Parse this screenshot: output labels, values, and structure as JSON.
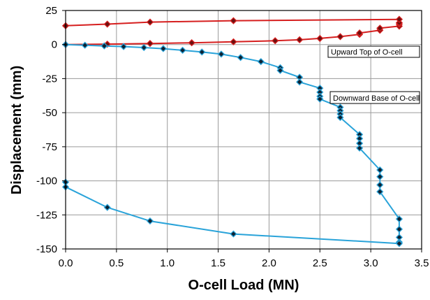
{
  "chart_data": {
    "type": "line",
    "title": "",
    "xlabel": "O-cell Load (MN)",
    "ylabel": "Displacement (mm)",
    "xlim": [
      0,
      3.5
    ],
    "ylim": [
      -150,
      25
    ],
    "x_ticks": [
      0,
      0.5,
      1,
      1.5,
      2,
      2.5,
      3,
      3.5
    ],
    "x_tick_labels": [
      "0.0",
      "0.5",
      "1.0",
      "1.5",
      "2.0",
      "2.5",
      "3.0",
      "3.5"
    ],
    "y_ticks": [
      25,
      0,
      -25,
      -50,
      -75,
      -100,
      -125,
      -150
    ],
    "y_tick_labels": [
      "25",
      "0",
      "-25",
      "-50",
      "-75",
      "-100",
      "-125",
      "-150"
    ],
    "grid": true,
    "series": [
      {
        "name": "Upward Top of O-cell",
        "color": "#d61f1f",
        "marker_color": "#6b0f0f",
        "x": [
          0,
          0.41,
          0.83,
          1.24,
          1.65,
          2.06,
          2.3,
          2.5,
          2.7,
          2.89,
          2.89,
          3.09,
          3.09,
          3.28,
          3.28,
          3.28,
          3.28,
          1.65,
          0.83,
          0.41,
          0
        ],
        "y": [
          0,
          0.3,
          0.8,
          1.3,
          2.0,
          2.8,
          3.5,
          4.5,
          5.8,
          7.5,
          8.5,
          10.5,
          12.0,
          13.5,
          15.0,
          16.0,
          18.5,
          17.5,
          16.5,
          15.0,
          13.8
        ]
      },
      {
        "name": "Downward Base of O-cell",
        "color": "#29a3d9",
        "marker_color": "#0d2233",
        "x": [
          0,
          0.19,
          0.38,
          0.57,
          0.77,
          0.96,
          1.15,
          1.34,
          1.53,
          1.72,
          1.92,
          2.11,
          2.11,
          2.3,
          2.3,
          2.5,
          2.5,
          2.5,
          2.5,
          2.7,
          2.7,
          2.7,
          2.7,
          2.89,
          2.89,
          2.89,
          2.89,
          3.09,
          3.09,
          3.09,
          3.09,
          3.28,
          3.28,
          3.28,
          3.28,
          3.28,
          1.65,
          0.83,
          0.41,
          0,
          0
        ],
        "y": [
          0,
          -0.5,
          -1.0,
          -1.5,
          -2.2,
          -3.0,
          -4.2,
          -5.5,
          -7.0,
          -9.5,
          -12.5,
          -17.0,
          -19.0,
          -24.0,
          -27.5,
          -32.0,
          -35.0,
          -38.0,
          -40.0,
          -46.0,
          -48.5,
          -51.0,
          -53.5,
          -66.0,
          -69.0,
          -72.5,
          -76.0,
          -92.0,
          -97.0,
          -103.0,
          -108.0,
          -128.0,
          -135.5,
          -141.5,
          -145.0,
          -146.0,
          -139.0,
          -129.5,
          -119.5,
          -104.5,
          -101.0
        ]
      }
    ],
    "annotations": [
      {
        "text": "Upward Top of O-cell",
        "series": "Upward Top of O-cell"
      },
      {
        "text": "Downward Base of O-cell",
        "series": "Downward Base of O-cell"
      }
    ]
  }
}
